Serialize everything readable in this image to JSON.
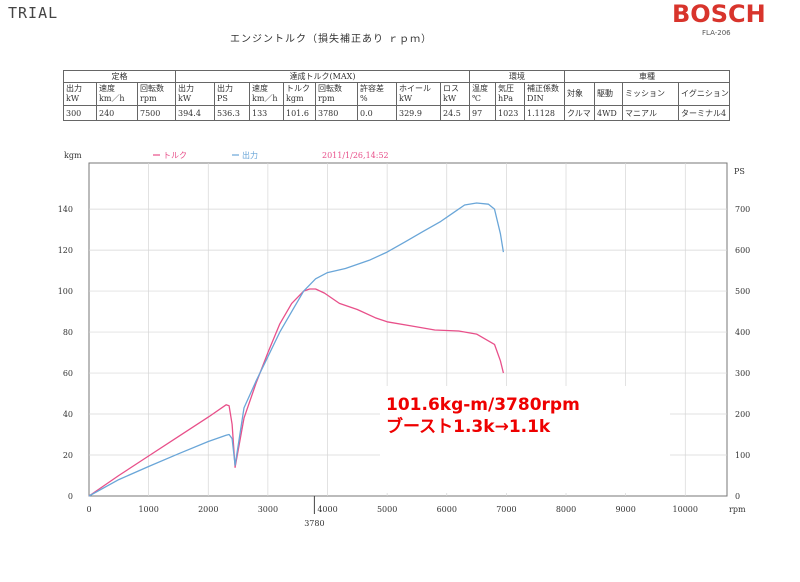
{
  "header": {
    "trial": "TRIAL",
    "brand": "BOSCH",
    "model": "FLA-206",
    "title": "エンジントルク（損失補正あり ｒｐｍ）"
  },
  "spec_table": {
    "groups": [
      "定格",
      "達成トルク(MAX)",
      "環境",
      "車種"
    ],
    "headers": [
      "出力 kW",
      "速度 km／h",
      "回転数 rpm",
      "出力 kW",
      "出力 PS",
      "速度 km／h",
      "トルク kgm",
      "回転数 rpm",
      "許容差 %",
      "ホイール kW",
      "ロス kW",
      "温度 ℃",
      "気圧 hPa",
      "補正係数 DIN",
      "対象",
      "駆動",
      "ミッション",
      "イグニション"
    ],
    "values": [
      "300",
      "240",
      "7500",
      "394.4",
      "536.3",
      "133",
      "101.6",
      "3780",
      "0.0",
      "329.9",
      "24.5",
      "97",
      "1023",
      "1.1128",
      "クルマ",
      "4WD",
      "マニアル",
      "ターミナル4"
    ]
  },
  "chart_data": {
    "type": "line",
    "left_axis_unit": "kgm",
    "right_axis_unit": "PS",
    "x_axis_unit": "rpm",
    "legend": [
      "トルク",
      "出力"
    ],
    "timestamp": "2011/1/26,14:52",
    "x_ticks": [
      0,
      1000,
      2000,
      3000,
      4000,
      5000,
      6000,
      7000,
      8000,
      9000,
      10000
    ],
    "y_left_ticks": [
      0,
      20,
      40,
      60,
      80,
      100,
      120,
      140
    ],
    "y_right_ticks": [
      0,
      100,
      200,
      300,
      400,
      500,
      600,
      700
    ],
    "xlim": [
      0,
      10700
    ],
    "ylim_left": [
      0,
      162.5
    ],
    "ylim_right": [
      0,
      812.5
    ],
    "marker_x": 3780,
    "marker_label": "3780",
    "colors": {
      "torque": "#e8508a",
      "power": "#6aa6d8",
      "note": "#ee0000"
    },
    "series": [
      {
        "name": "トルク",
        "axis": "left",
        "color": "#e8508a",
        "x": [
          0,
          500,
          1000,
          1500,
          2000,
          2300,
          2350,
          2400,
          2450,
          2600,
          2800,
          3000,
          3200,
          3400,
          3600,
          3700,
          3800,
          3950,
          4200,
          4500,
          4800,
          5000,
          5400,
          5800,
          6200,
          6500,
          6800,
          6900,
          6950
        ],
        "y": [
          0,
          10,
          19.5,
          29,
          38.5,
          44.5,
          44,
          35,
          14,
          38,
          55,
          70,
          84,
          94,
          100,
          101,
          101,
          99,
          94,
          91,
          87,
          85,
          83,
          81,
          80.5,
          79,
          74,
          66,
          60
        ]
      },
      {
        "name": "出力",
        "axis": "right",
        "color": "#6aa6d8",
        "x": [
          0,
          500,
          1000,
          1500,
          2000,
          2300,
          2350,
          2400,
          2450,
          2600,
          2800,
          3000,
          3200,
          3400,
          3600,
          3800,
          4000,
          4300,
          4700,
          5000,
          5300,
          5600,
          5900,
          6100,
          6300,
          6500,
          6700,
          6800,
          6900,
          6950
        ],
        "y": [
          0,
          40,
          72,
          103,
          133,
          148,
          150,
          140,
          75,
          215,
          280,
          340,
          400,
          450,
          500,
          530,
          545,
          555,
          575,
          595,
          620,
          645,
          670,
          690,
          710,
          715,
          712,
          700,
          640,
          595
        ]
      }
    ]
  },
  "annotation": {
    "line1": "101.6kg-m/3780rpm",
    "line2": "ブースト1.3k→1.1k"
  }
}
